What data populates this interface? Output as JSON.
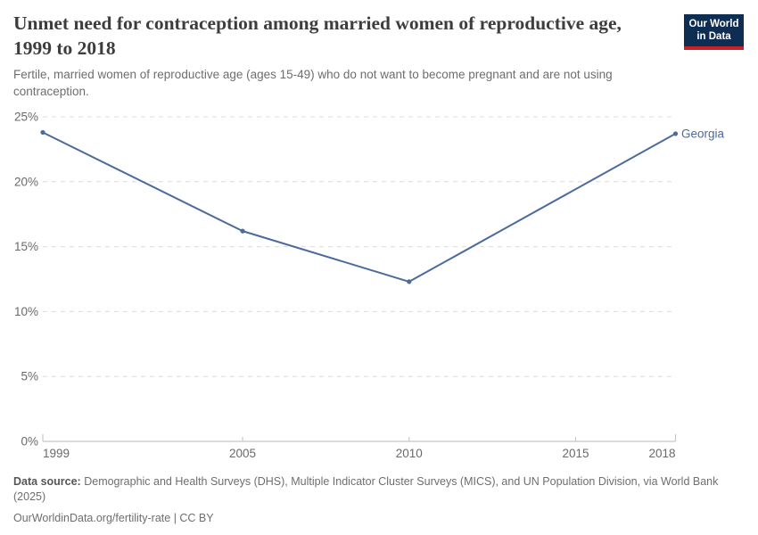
{
  "header": {
    "title": "Unmet need for contraception among married women of reproductive age, 1999 to 2018",
    "subtitle": "Fertile, married women of reproductive age (ages 15-49) who do not want to become pregnant and are not using contraception.",
    "logo": {
      "line1": "Our World",
      "line2": "in Data"
    }
  },
  "chart_data": {
    "type": "line",
    "title": "Unmet need for contraception among married women of reproductive age, 1999 to 2018",
    "xlabel": "",
    "ylabel": "",
    "xlim": [
      1999,
      2018
    ],
    "ylim": [
      0,
      25
    ],
    "x_ticks": [
      1999,
      2005,
      2010,
      2015,
      2018
    ],
    "y_ticks": [
      0,
      5,
      10,
      15,
      20,
      25
    ],
    "y_tick_suffix": "%",
    "grid": "horizontal-dashed",
    "legend": "end-of-line-label",
    "series": [
      {
        "name": "Georgia",
        "color": "#4c6a9c",
        "x": [
          1999,
          2005,
          2010,
          2018
        ],
        "values": [
          23.8,
          16.2,
          12.3,
          23.7
        ]
      }
    ]
  },
  "footer": {
    "datasource_label": "Data source:",
    "datasource_text": "Demographic and Health Surveys (DHS), Multiple Indicator Cluster Surveys (MICS), and UN Population Division, via World Bank (2025)",
    "license_line": "OurWorldinData.org/fertility-rate | CC BY"
  },
  "colors": {
    "line": "#4c6a9c",
    "logo_navy": "#0d2d52",
    "logo_red": "#cb2026",
    "title_text": "#3d3d3d",
    "muted_text": "#6e6e6e",
    "grid": "#dcdcdc",
    "axis": "#c8c8c8"
  }
}
